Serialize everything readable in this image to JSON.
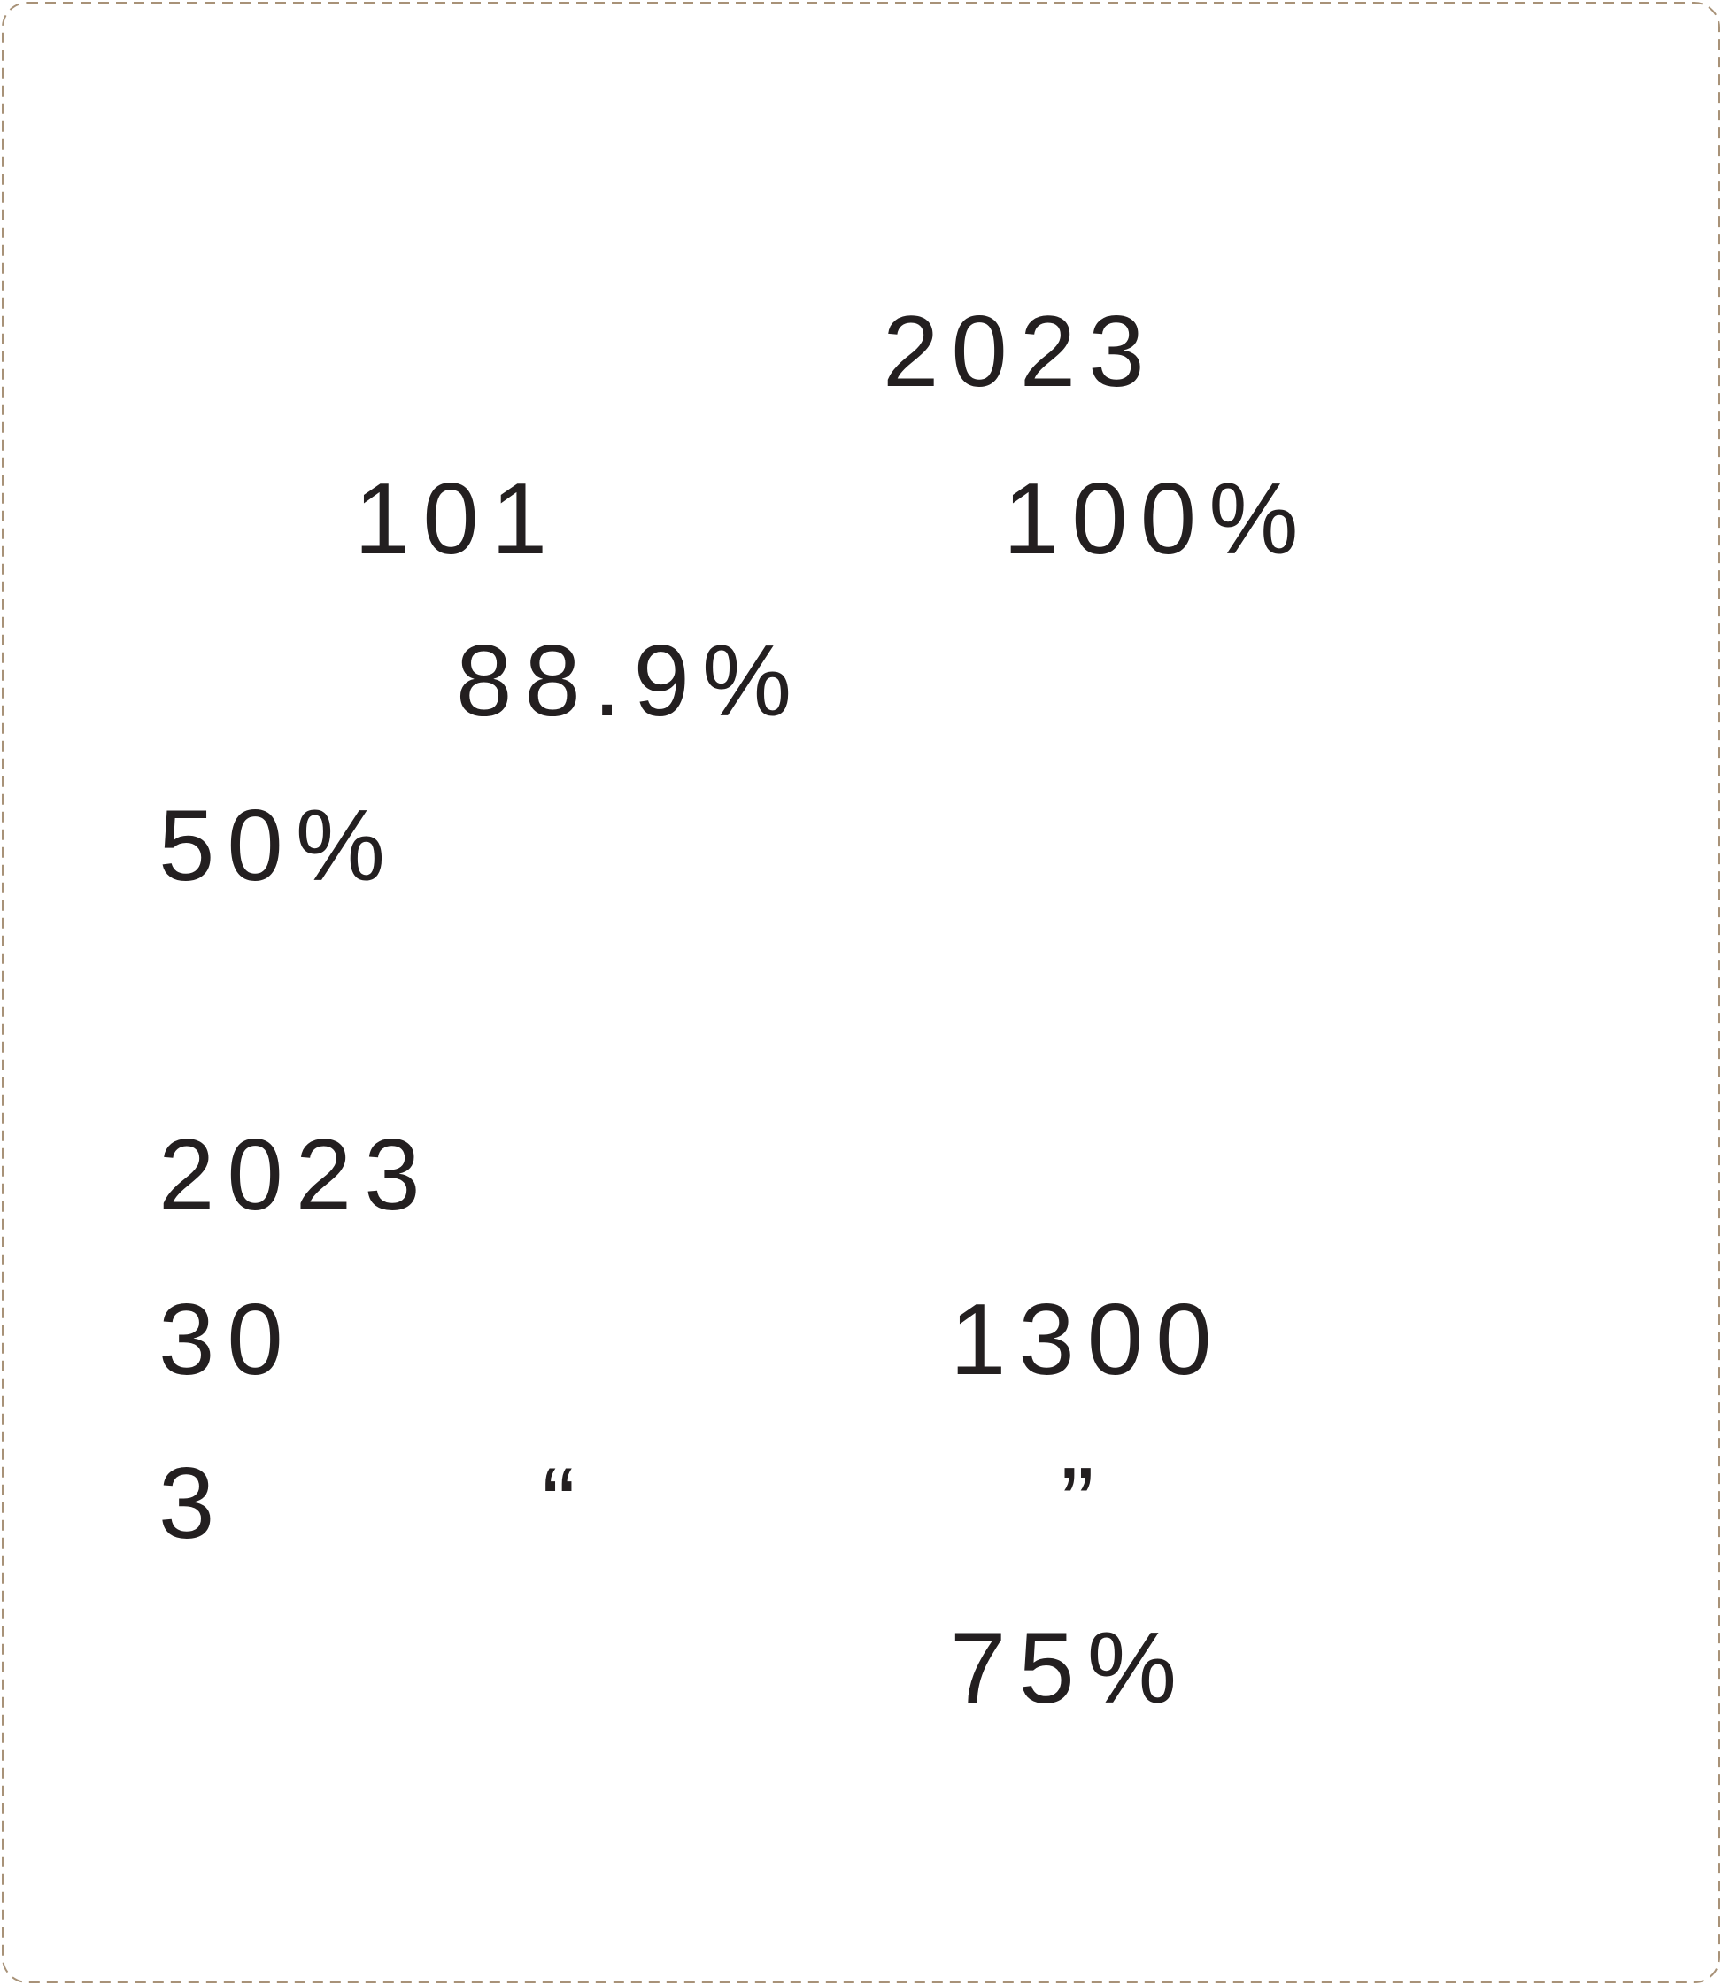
{
  "paragraphs": [
    [
      "2023",
      "101",
      "100%",
      "88.9%",
      "50%"
    ],
    [
      "2023",
      "30",
      "1300",
      "3",
      "“",
      "”",
      "75%"
    ]
  ]
}
